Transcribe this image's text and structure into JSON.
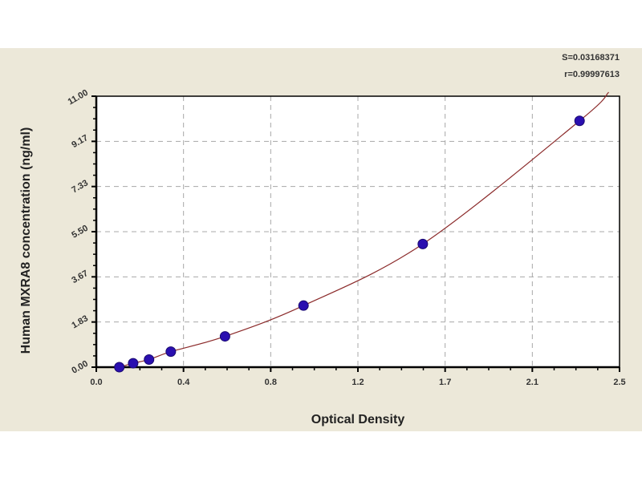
{
  "chart_data": {
    "type": "scatter",
    "title": "",
    "xlabel": "Optical Density",
    "ylabel": "Human MXRA8 concentration (ng/ml)",
    "xlim": [
      0,
      2.5
    ],
    "ylim": [
      0,
      11
    ],
    "x_ticks": [
      "0.0",
      "0.4",
      "0.8",
      "1.2",
      "1.7",
      "2.1",
      "2.5"
    ],
    "y_ticks": [
      "0.00",
      "1.83",
      "3.67",
      "5.50",
      "7.33",
      "9.17",
      "11.00"
    ],
    "grid": true,
    "fit_curve": true,
    "points": {
      "x": [
        0.11,
        0.176,
        0.252,
        0.356,
        0.615,
        0.99,
        1.56,
        2.309
      ],
      "y": [
        0,
        0.16,
        0.31,
        0.63,
        1.25,
        2.5,
        5,
        10
      ]
    },
    "annotations": [
      "S=0.03168371",
      "r=0.99997613"
    ],
    "colors": {
      "point": "#2a0fb0",
      "curve": "#8b2a2a",
      "grid": "#a8a8a8",
      "background": "#ece8d9",
      "plot": "#ffffff"
    }
  }
}
